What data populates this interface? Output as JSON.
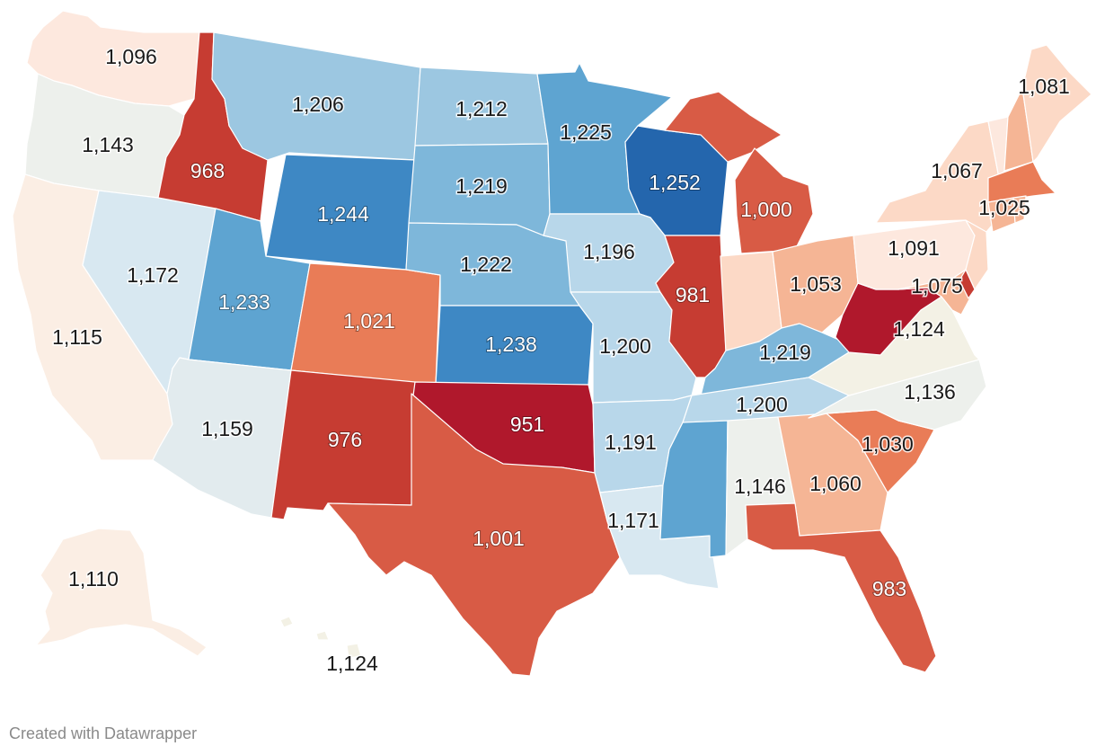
{
  "credit": "Created with Datawrapper",
  "colors": {
    "c951": "#b0182c",
    "c970": "#c63c32",
    "c1000": "#d85b45",
    "c1025": "#e97c57",
    "c1060": "#f5b595",
    "c1080": "#fcd9c6",
    "c1100": "#fde8de",
    "c1115": "#fbeee4",
    "c1130": "#f3f1e5",
    "c1145": "#edf0ec",
    "c1160": "#e2ebee",
    "c1175": "#d8e8f1",
    "c1195": "#b8d7ea",
    "c1210": "#9cc7e1",
    "c1222": "#7eb7da",
    "c1233": "#5ea4d1",
    "c1244": "#3e88c4",
    "c1252": "#2466ad"
  },
  "states": [
    {
      "id": "WA",
      "value": "1,096"
    },
    {
      "id": "OR",
      "value": "1,143"
    },
    {
      "id": "CA",
      "value": "1,115"
    },
    {
      "id": "NV",
      "value": "1,172"
    },
    {
      "id": "ID",
      "value": "968"
    },
    {
      "id": "MT",
      "value": "1,206"
    },
    {
      "id": "WY",
      "value": "1,244"
    },
    {
      "id": "UT",
      "value": "1,233"
    },
    {
      "id": "AZ",
      "value": "1,159"
    },
    {
      "id": "CO",
      "value": "1,021"
    },
    {
      "id": "NM",
      "value": "976"
    },
    {
      "id": "ND",
      "value": "1,212"
    },
    {
      "id": "SD",
      "value": "1,219"
    },
    {
      "id": "NE",
      "value": "1,222"
    },
    {
      "id": "KS",
      "value": "1,238"
    },
    {
      "id": "OK",
      "value": "951"
    },
    {
      "id": "TX",
      "value": "1,001"
    },
    {
      "id": "MN",
      "value": "1,225"
    },
    {
      "id": "IA",
      "value": "1,196"
    },
    {
      "id": "MO",
      "value": "1,200"
    },
    {
      "id": "AR",
      "value": "1,191"
    },
    {
      "id": "LA",
      "value": "1,171"
    },
    {
      "id": "WI",
      "value": "1,252"
    },
    {
      "id": "IL",
      "value": "981"
    },
    {
      "id": "MI",
      "value": "1,000"
    },
    {
      "id": "IN",
      "value": ""
    },
    {
      "id": "OH",
      "value": "1,053"
    },
    {
      "id": "KY",
      "value": "1,219"
    },
    {
      "id": "TN",
      "value": "1,200"
    },
    {
      "id": "MS",
      "value": ""
    },
    {
      "id": "AL",
      "value": "1,146"
    },
    {
      "id": "GA",
      "value": "1,060"
    },
    {
      "id": "FL",
      "value": "983"
    },
    {
      "id": "SC",
      "value": "1,030"
    },
    {
      "id": "NC",
      "value": "1,136"
    },
    {
      "id": "VA",
      "value": "1,124"
    },
    {
      "id": "WV",
      "value": ""
    },
    {
      "id": "PA",
      "value": "1,091"
    },
    {
      "id": "NY",
      "value": "1,067"
    },
    {
      "id": "NJ",
      "value": ""
    },
    {
      "id": "MD",
      "value": "1,075"
    },
    {
      "id": "DE",
      "value": ""
    },
    {
      "id": "VT",
      "value": ""
    },
    {
      "id": "NH",
      "value": ""
    },
    {
      "id": "ME",
      "value": "1,081"
    },
    {
      "id": "MA",
      "value": "1,025"
    },
    {
      "id": "CT",
      "value": ""
    },
    {
      "id": "RI",
      "value": ""
    },
    {
      "id": "AK",
      "value": "1,110"
    },
    {
      "id": "HI",
      "value": "1,124"
    }
  ]
}
